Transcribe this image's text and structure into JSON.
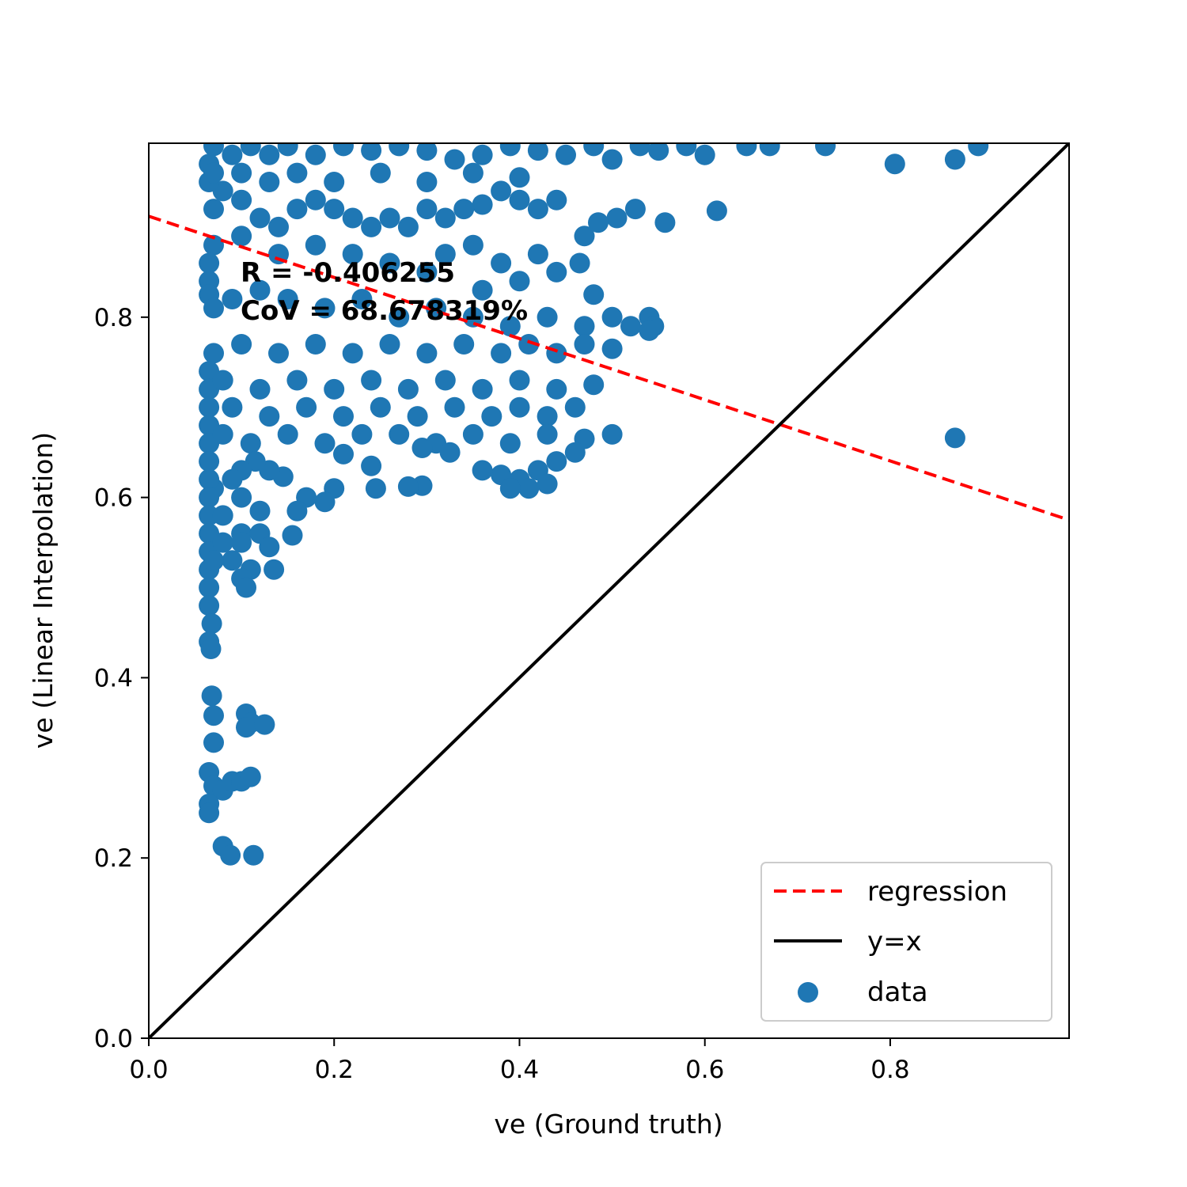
{
  "chart_data": {
    "type": "scatter",
    "title": "",
    "xlabel": "ve (Ground truth)",
    "ylabel": "ve (Linear Interpolation)",
    "xlim": [
      0.0,
      0.993
    ],
    "ylim": [
      0.0,
      0.993
    ],
    "x_ticks": [
      0.0,
      0.2,
      0.4,
      0.6,
      0.8
    ],
    "y_ticks": [
      0.0,
      0.2,
      0.4,
      0.6,
      0.8
    ],
    "x_tick_labels": [
      "0.0",
      "0.2",
      "0.4",
      "0.6",
      "0.8"
    ],
    "y_tick_labels": [
      "0.0",
      "0.2",
      "0.4",
      "0.6",
      "0.8"
    ],
    "grid": false,
    "legend_position": "lower-right",
    "annotations": {
      "r_text": "R = -0.406255",
      "cov_text": "CoV = 68.678319%"
    },
    "legend": {
      "regression": "regression",
      "identity": "y=x",
      "data": "data"
    },
    "colors": {
      "data": "#1f77b4",
      "regression": "#ff0000",
      "identity": "#000000"
    },
    "regression_line": {
      "x": [
        0.0,
        0.993
      ],
      "y": [
        0.912,
        0.575
      ]
    },
    "identity_line": {
      "x": [
        0.0,
        0.993
      ],
      "y": [
        0.0,
        0.993
      ]
    },
    "series": [
      {
        "name": "data",
        "points": [
          [
            0.07,
            0.99
          ],
          [
            0.09,
            0.98
          ],
          [
            0.11,
            0.99
          ],
          [
            0.13,
            0.98
          ],
          [
            0.15,
            0.99
          ],
          [
            0.18,
            0.98
          ],
          [
            0.21,
            0.99
          ],
          [
            0.24,
            0.985
          ],
          [
            0.27,
            0.99
          ],
          [
            0.3,
            0.985
          ],
          [
            0.33,
            0.975
          ],
          [
            0.36,
            0.98
          ],
          [
            0.39,
            0.99
          ],
          [
            0.42,
            0.985
          ],
          [
            0.45,
            0.98
          ],
          [
            0.48,
            0.99
          ],
          [
            0.5,
            0.975
          ],
          [
            0.53,
            0.99
          ],
          [
            0.55,
            0.985
          ],
          [
            0.58,
            0.99
          ],
          [
            0.6,
            0.98
          ],
          [
            0.645,
            0.99
          ],
          [
            0.67,
            0.99
          ],
          [
            0.73,
            0.99
          ],
          [
            0.805,
            0.97
          ],
          [
            0.87,
            0.975
          ],
          [
            0.895,
            0.99
          ],
          [
            0.613,
            0.918
          ],
          [
            0.557,
            0.905
          ],
          [
            0.525,
            0.92
          ],
          [
            0.505,
            0.91
          ],
          [
            0.485,
            0.905
          ],
          [
            0.47,
            0.89
          ],
          [
            0.465,
            0.86
          ],
          [
            0.48,
            0.825
          ],
          [
            0.44,
            0.93
          ],
          [
            0.42,
            0.92
          ],
          [
            0.4,
            0.93
          ],
          [
            0.38,
            0.94
          ],
          [
            0.36,
            0.925
          ],
          [
            0.34,
            0.92
          ],
          [
            0.32,
            0.91
          ],
          [
            0.3,
            0.92
          ],
          [
            0.28,
            0.9
          ],
          [
            0.26,
            0.91
          ],
          [
            0.24,
            0.9
          ],
          [
            0.22,
            0.91
          ],
          [
            0.2,
            0.92
          ],
          [
            0.18,
            0.93
          ],
          [
            0.16,
            0.92
          ],
          [
            0.14,
            0.9
          ],
          [
            0.12,
            0.91
          ],
          [
            0.1,
            0.93
          ],
          [
            0.08,
            0.94
          ],
          [
            0.07,
            0.92
          ],
          [
            0.065,
            0.95
          ],
          [
            0.065,
            0.97
          ],
          [
            0.07,
            0.96
          ],
          [
            0.1,
            0.96
          ],
          [
            0.13,
            0.95
          ],
          [
            0.16,
            0.96
          ],
          [
            0.2,
            0.95
          ],
          [
            0.25,
            0.96
          ],
          [
            0.3,
            0.95
          ],
          [
            0.35,
            0.96
          ],
          [
            0.4,
            0.955
          ],
          [
            0.32,
            0.87
          ],
          [
            0.35,
            0.88
          ],
          [
            0.38,
            0.86
          ],
          [
            0.42,
            0.87
          ],
          [
            0.44,
            0.85
          ],
          [
            0.4,
            0.84
          ],
          [
            0.36,
            0.83
          ],
          [
            0.3,
            0.85
          ],
          [
            0.26,
            0.86
          ],
          [
            0.22,
            0.87
          ],
          [
            0.18,
            0.88
          ],
          [
            0.14,
            0.87
          ],
          [
            0.1,
            0.89
          ],
          [
            0.07,
            0.88
          ],
          [
            0.065,
            0.86
          ],
          [
            0.065,
            0.84
          ],
          [
            0.065,
            0.825
          ],
          [
            0.07,
            0.81
          ],
          [
            0.09,
            0.82
          ],
          [
            0.12,
            0.83
          ],
          [
            0.15,
            0.82
          ],
          [
            0.19,
            0.81
          ],
          [
            0.23,
            0.82
          ],
          [
            0.27,
            0.8
          ],
          [
            0.31,
            0.81
          ],
          [
            0.35,
            0.8
          ],
          [
            0.39,
            0.79
          ],
          [
            0.43,
            0.8
          ],
          [
            0.47,
            0.79
          ],
          [
            0.5,
            0.8
          ],
          [
            0.52,
            0.79
          ],
          [
            0.54,
            0.8
          ],
          [
            0.545,
            0.79
          ],
          [
            0.54,
            0.785
          ],
          [
            0.5,
            0.765
          ],
          [
            0.47,
            0.77
          ],
          [
            0.44,
            0.76
          ],
          [
            0.41,
            0.77
          ],
          [
            0.38,
            0.76
          ],
          [
            0.34,
            0.77
          ],
          [
            0.3,
            0.76
          ],
          [
            0.26,
            0.77
          ],
          [
            0.22,
            0.76
          ],
          [
            0.18,
            0.77
          ],
          [
            0.14,
            0.76
          ],
          [
            0.1,
            0.77
          ],
          [
            0.07,
            0.76
          ],
          [
            0.065,
            0.74
          ],
          [
            0.065,
            0.72
          ],
          [
            0.08,
            0.73
          ],
          [
            0.12,
            0.72
          ],
          [
            0.16,
            0.73
          ],
          [
            0.2,
            0.72
          ],
          [
            0.24,
            0.73
          ],
          [
            0.28,
            0.72
          ],
          [
            0.32,
            0.73
          ],
          [
            0.36,
            0.72
          ],
          [
            0.4,
            0.73
          ],
          [
            0.44,
            0.72
          ],
          [
            0.48,
            0.725
          ],
          [
            0.46,
            0.7
          ],
          [
            0.43,
            0.69
          ],
          [
            0.4,
            0.7
          ],
          [
            0.37,
            0.69
          ],
          [
            0.33,
            0.7
          ],
          [
            0.29,
            0.69
          ],
          [
            0.25,
            0.7
          ],
          [
            0.21,
            0.69
          ],
          [
            0.17,
            0.7
          ],
          [
            0.13,
            0.69
          ],
          [
            0.09,
            0.7
          ],
          [
            0.065,
            0.7
          ],
          [
            0.065,
            0.68
          ],
          [
            0.065,
            0.66
          ],
          [
            0.08,
            0.67
          ],
          [
            0.11,
            0.66
          ],
          [
            0.15,
            0.67
          ],
          [
            0.19,
            0.66
          ],
          [
            0.23,
            0.67
          ],
          [
            0.27,
            0.67
          ],
          [
            0.31,
            0.66
          ],
          [
            0.35,
            0.67
          ],
          [
            0.39,
            0.66
          ],
          [
            0.43,
            0.67
          ],
          [
            0.47,
            0.665
          ],
          [
            0.5,
            0.67
          ],
          [
            0.46,
            0.65
          ],
          [
            0.44,
            0.64
          ],
          [
            0.42,
            0.63
          ],
          [
            0.4,
            0.62
          ],
          [
            0.38,
            0.625
          ],
          [
            0.36,
            0.63
          ],
          [
            0.41,
            0.61
          ],
          [
            0.43,
            0.615
          ],
          [
            0.39,
            0.61
          ],
          [
            0.325,
            0.65
          ],
          [
            0.295,
            0.655
          ],
          [
            0.295,
            0.613
          ],
          [
            0.28,
            0.612
          ],
          [
            0.245,
            0.61
          ],
          [
            0.24,
            0.635
          ],
          [
            0.21,
            0.648
          ],
          [
            0.2,
            0.61
          ],
          [
            0.19,
            0.595
          ],
          [
            0.17,
            0.6
          ],
          [
            0.16,
            0.585
          ],
          [
            0.155,
            0.558
          ],
          [
            0.145,
            0.623
          ],
          [
            0.13,
            0.63
          ],
          [
            0.115,
            0.64
          ],
          [
            0.1,
            0.63
          ],
          [
            0.09,
            0.62
          ],
          [
            0.07,
            0.61
          ],
          [
            0.065,
            0.62
          ],
          [
            0.065,
            0.64
          ],
          [
            0.065,
            0.6
          ],
          [
            0.065,
            0.58
          ],
          [
            0.065,
            0.56
          ],
          [
            0.065,
            0.54
          ],
          [
            0.065,
            0.52
          ],
          [
            0.065,
            0.5
          ],
          [
            0.065,
            0.48
          ],
          [
            0.068,
            0.46
          ],
          [
            0.065,
            0.44
          ],
          [
            0.067,
            0.432
          ],
          [
            0.08,
            0.58
          ],
          [
            0.1,
            0.6
          ],
          [
            0.1,
            0.56
          ],
          [
            0.1,
            0.55
          ],
          [
            0.12,
            0.585
          ],
          [
            0.12,
            0.56
          ],
          [
            0.13,
            0.545
          ],
          [
            0.135,
            0.52
          ],
          [
            0.11,
            0.52
          ],
          [
            0.1,
            0.51
          ],
          [
            0.105,
            0.5
          ],
          [
            0.09,
            0.53
          ],
          [
            0.08,
            0.55
          ],
          [
            0.07,
            0.53
          ],
          [
            0.068,
            0.38
          ],
          [
            0.07,
            0.358
          ],
          [
            0.07,
            0.328
          ],
          [
            0.105,
            0.36
          ],
          [
            0.11,
            0.35
          ],
          [
            0.105,
            0.345
          ],
          [
            0.125,
            0.348
          ],
          [
            0.065,
            0.295
          ],
          [
            0.07,
            0.28
          ],
          [
            0.08,
            0.275
          ],
          [
            0.09,
            0.285
          ],
          [
            0.1,
            0.285
          ],
          [
            0.11,
            0.29
          ],
          [
            0.065,
            0.26
          ],
          [
            0.065,
            0.25
          ],
          [
            0.08,
            0.213
          ],
          [
            0.088,
            0.203
          ],
          [
            0.113,
            0.203
          ],
          [
            0.87,
            0.666
          ]
        ]
      }
    ]
  }
}
